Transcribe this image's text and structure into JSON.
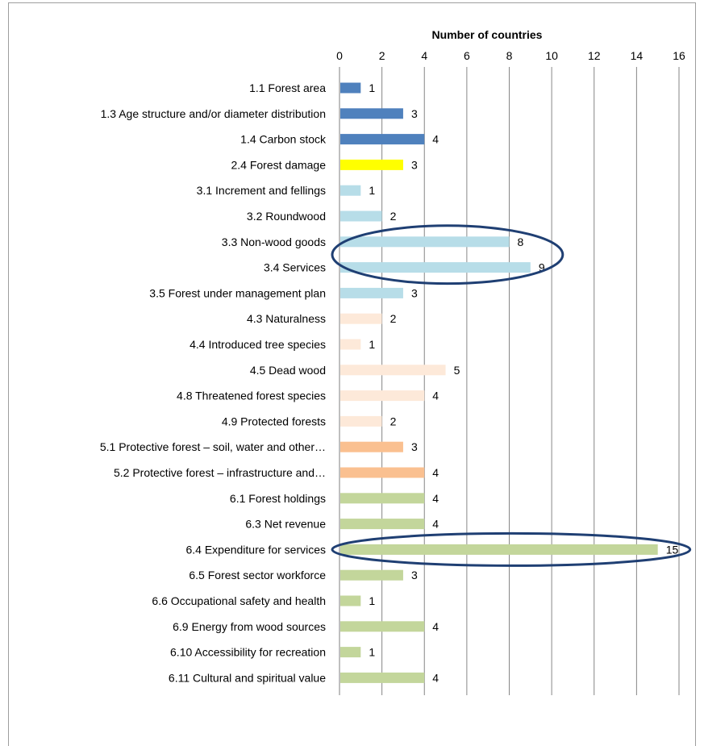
{
  "chart_data": {
    "type": "bar",
    "orientation": "horizontal",
    "title": "Number of countries",
    "xlim": [
      0,
      16
    ],
    "xticks": [
      0,
      2,
      4,
      6,
      8,
      10,
      12,
      14,
      16
    ],
    "grid": true,
    "categories": [
      "1.1 Forest area",
      "1.3 Age structure and/or diameter distribution",
      "1.4 Carbon stock",
      "2.4 Forest damage",
      "3.1 Increment and fellings",
      "3.2 Roundwood",
      "3.3 Non-wood goods",
      "3.4 Services",
      "3.5 Forest under management plan",
      "4.3 Naturalness",
      "4.4 Introduced tree species",
      "4.5 Dead wood",
      "4.8 Threatened forest species",
      "4.9 Protected forests",
      "5.1 Protective forest – soil, water and other…",
      "5.2 Protective forest – infrastructure and…",
      "6.1 Forest holdings",
      "6.3 Net revenue",
      "6.4 Expenditure for services",
      "6.5 Forest sector workforce",
      "6.6 Occupational safety and health",
      "6.9 Energy from wood sources",
      "6.10 Accessibility for recreation",
      "6.11 Cultural and spiritual value"
    ],
    "values": [
      1,
      3,
      4,
      3,
      1,
      2,
      8,
      9,
      3,
      2,
      1,
      5,
      4,
      2,
      3,
      4,
      4,
      4,
      15,
      3,
      1,
      4,
      1,
      4
    ],
    "colors": [
      "#4f81bd",
      "#4f81bd",
      "#4f81bd",
      "#ffff00",
      "#b7dde8",
      "#b7dde8",
      "#b7dde8",
      "#b7dde8",
      "#b7dde8",
      "#fde9d9",
      "#fde9d9",
      "#fde9d9",
      "#fde9d9",
      "#fde9d9",
      "#fac090",
      "#fac090",
      "#c3d69b",
      "#c3d69b",
      "#c3d69b",
      "#c3d69b",
      "#c3d69b",
      "#c3d69b",
      "#c3d69b",
      "#c3d69b"
    ],
    "highlight_groups": [
      [
        "3.3 Non-wood goods",
        "3.4 Services"
      ],
      [
        "6.4 Expenditure for services"
      ]
    ],
    "highlight_color": "#1f3f73"
  }
}
